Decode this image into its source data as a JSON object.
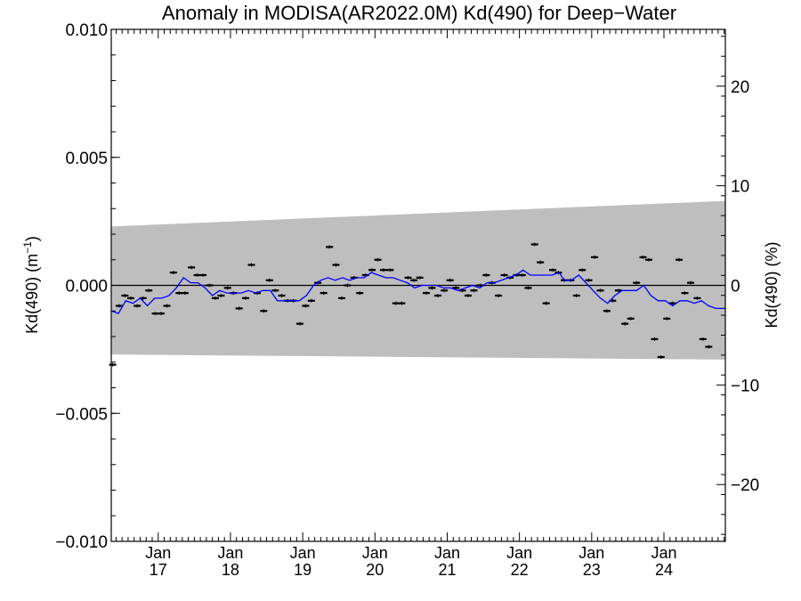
{
  "chart_data": {
    "type": "scatter",
    "title": "Anomaly in MODISA(AR2022.0M) Kd(490) for Deep−Water",
    "ylabel_left_prefix": "Kd(490) (m",
    "ylabel_left_sup": "−1",
    "ylabel_left_suffix": ")",
    "ylabel_right": "Kd(490) (%)",
    "ylim_left": [
      -0.01,
      0.01
    ],
    "ylim_right": [
      -25.7,
      25.7
    ],
    "xlim": [
      2016.35,
      2024.85
    ],
    "left_ticks": [
      {
        "v": 0.01,
        "label": "0.010"
      },
      {
        "v": 0.005,
        "label": "0.005"
      },
      {
        "v": 0.0,
        "label": "0.000"
      },
      {
        "v": -0.005,
        "label": "−0.005"
      },
      {
        "v": -0.01,
        "label": "−0.010"
      }
    ],
    "right_ticks": [
      {
        "v": 20,
        "label": "20"
      },
      {
        "v": 10,
        "label": "10"
      },
      {
        "v": 0,
        "label": "0"
      },
      {
        "v": -10,
        "label": "−10"
      },
      {
        "v": -20,
        "label": "−20"
      }
    ],
    "x_ticks": [
      {
        "x": 2017.0,
        "month": "Jan",
        "year": "17"
      },
      {
        "x": 2018.0,
        "month": "Jan",
        "year": "18"
      },
      {
        "x": 2019.0,
        "month": "Jan",
        "year": "19"
      },
      {
        "x": 2020.0,
        "month": "Jan",
        "year": "20"
      },
      {
        "x": 2021.0,
        "month": "Jan",
        "year": "21"
      },
      {
        "x": 2022.0,
        "month": "Jan",
        "year": "22"
      },
      {
        "x": 2023.0,
        "month": "Jan",
        "year": "23"
      },
      {
        "x": 2024.0,
        "month": "Jan",
        "year": "24"
      }
    ],
    "band": {
      "x": [
        2016.35,
        2024.85
      ],
      "upper": [
        0.0023,
        0.0033
      ],
      "lower": [
        -0.0027,
        -0.0029
      ],
      "color": "#bebebe"
    },
    "zero_line": 0.0,
    "colors": {
      "points": "#000000",
      "smooth": "#0000ff"
    },
    "points": [
      [
        2016.37,
        -0.0031
      ],
      [
        2016.46,
        -0.0008
      ],
      [
        2016.54,
        -0.0004
      ],
      [
        2016.62,
        -0.0005
      ],
      [
        2016.71,
        -0.0008
      ],
      [
        2016.79,
        -0.0005
      ],
      [
        2016.87,
        -0.0002
      ],
      [
        2016.96,
        -0.0011
      ],
      [
        2017.04,
        -0.0011
      ],
      [
        2017.12,
        -0.0008
      ],
      [
        2017.21,
        0.0005
      ],
      [
        2017.29,
        -0.0003
      ],
      [
        2017.37,
        -0.0003
      ],
      [
        2017.46,
        0.0007
      ],
      [
        2017.54,
        0.0004
      ],
      [
        2017.62,
        0.0004
      ],
      [
        2017.71,
        0.0
      ],
      [
        2017.79,
        -0.0005
      ],
      [
        2017.87,
        -0.0004
      ],
      [
        2017.96,
        -0.0001
      ],
      [
        2018.04,
        -0.0003
      ],
      [
        2018.12,
        -0.0009
      ],
      [
        2018.21,
        -0.0005
      ],
      [
        2018.29,
        0.0008
      ],
      [
        2018.37,
        -0.0003
      ],
      [
        2018.46,
        -0.001
      ],
      [
        2018.54,
        0.0002
      ],
      [
        2018.62,
        -0.0002
      ],
      [
        2018.71,
        -0.0004
      ],
      [
        2018.79,
        -0.0006
      ],
      [
        2018.87,
        -0.0006
      ],
      [
        2018.96,
        -0.0015
      ],
      [
        2019.04,
        -0.0008
      ],
      [
        2019.12,
        -0.0006
      ],
      [
        2019.21,
        0.0001
      ],
      [
        2019.29,
        -0.0003
      ],
      [
        2019.37,
        0.0015
      ],
      [
        2019.46,
        0.0008
      ],
      [
        2019.54,
        -0.0005
      ],
      [
        2019.62,
        0.0
      ],
      [
        2019.71,
        0.0003
      ],
      [
        2019.79,
        -0.0003
      ],
      [
        2019.87,
        0.0004
      ],
      [
        2019.96,
        0.0006
      ],
      [
        2020.04,
        0.001
      ],
      [
        2020.12,
        0.0006
      ],
      [
        2020.21,
        0.0006
      ],
      [
        2020.29,
        -0.0007
      ],
      [
        2020.37,
        -0.0007
      ],
      [
        2020.46,
        0.0003
      ],
      [
        2020.54,
        0.0002
      ],
      [
        2020.62,
        0.0003
      ],
      [
        2020.71,
        -0.0003
      ],
      [
        2020.79,
        -0.0001
      ],
      [
        2020.87,
        -0.0004
      ],
      [
        2020.96,
        -0.0002
      ],
      [
        2021.04,
        0.0002
      ],
      [
        2021.12,
        -0.0001
      ],
      [
        2021.21,
        -0.0002
      ],
      [
        2021.29,
        -0.0004
      ],
      [
        2021.37,
        -0.0002
      ],
      [
        2021.46,
        0.0
      ],
      [
        2021.54,
        0.0004
      ],
      [
        2021.62,
        0.0001
      ],
      [
        2021.71,
        -0.0004
      ],
      [
        2021.79,
        0.0004
      ],
      [
        2021.87,
        0.0003
      ],
      [
        2021.96,
        0.0004
      ],
      [
        2022.04,
        0.0004
      ],
      [
        2022.12,
        -0.0001
      ],
      [
        2022.21,
        0.0016
      ],
      [
        2022.29,
        0.0009
      ],
      [
        2022.37,
        -0.0007
      ],
      [
        2022.46,
        0.0006
      ],
      [
        2022.54,
        0.0005
      ],
      [
        2022.62,
        0.0002
      ],
      [
        2022.71,
        0.0002
      ],
      [
        2022.79,
        -0.0004
      ],
      [
        2022.87,
        0.0006
      ],
      [
        2022.96,
        0.0002
      ],
      [
        2023.04,
        0.0011
      ],
      [
        2023.12,
        -0.0002
      ],
      [
        2023.21,
        -0.001
      ],
      [
        2023.29,
        -0.0006
      ],
      [
        2023.37,
        -0.0002
      ],
      [
        2023.46,
        -0.0015
      ],
      [
        2023.54,
        -0.0013
      ],
      [
        2023.62,
        0.0001
      ],
      [
        2023.71,
        0.0011
      ],
      [
        2023.79,
        0.001
      ],
      [
        2023.87,
        -0.0021
      ],
      [
        2023.96,
        -0.0028
      ],
      [
        2024.04,
        -0.0013
      ],
      [
        2024.12,
        -0.0007
      ],
      [
        2024.21,
        0.001
      ],
      [
        2024.29,
        -0.0003
      ],
      [
        2024.37,
        0.0001
      ],
      [
        2024.46,
        -0.0005
      ],
      [
        2024.54,
        -0.0021
      ],
      [
        2024.62,
        -0.0024
      ]
    ],
    "smooth": [
      [
        2016.35,
        -0.001
      ],
      [
        2016.45,
        -0.0011
      ],
      [
        2016.55,
        -0.0006
      ],
      [
        2016.65,
        -0.0007
      ],
      [
        2016.75,
        -0.0005
      ],
      [
        2016.85,
        -0.0008
      ],
      [
        2016.95,
        -0.0005
      ],
      [
        2017.05,
        -0.0005
      ],
      [
        2017.15,
        -0.0004
      ],
      [
        2017.25,
        -0.0001
      ],
      [
        2017.35,
        0.0003
      ],
      [
        2017.45,
        0.0001
      ],
      [
        2017.55,
        0.0001
      ],
      [
        2017.65,
        -0.0001
      ],
      [
        2017.75,
        -0.0004
      ],
      [
        2017.85,
        -0.0002
      ],
      [
        2017.95,
        -0.0003
      ],
      [
        2018.05,
        -0.0003
      ],
      [
        2018.15,
        -0.0003
      ],
      [
        2018.25,
        -0.0002
      ],
      [
        2018.35,
        -0.0003
      ],
      [
        2018.45,
        -0.0002
      ],
      [
        2018.55,
        -0.0002
      ],
      [
        2018.65,
        -0.0006
      ],
      [
        2018.75,
        -0.0006
      ],
      [
        2018.85,
        -0.0006
      ],
      [
        2018.95,
        -0.0006
      ],
      [
        2019.05,
        -0.0004
      ],
      [
        2019.15,
        0.0
      ],
      [
        2019.25,
        0.0002
      ],
      [
        2019.35,
        0.0003
      ],
      [
        2019.45,
        0.0002
      ],
      [
        2019.55,
        0.0003
      ],
      [
        2019.65,
        0.0002
      ],
      [
        2019.75,
        0.0003
      ],
      [
        2019.85,
        0.0003
      ],
      [
        2019.95,
        0.0005
      ],
      [
        2020.05,
        0.0004
      ],
      [
        2020.15,
        0.0003
      ],
      [
        2020.25,
        0.0003
      ],
      [
        2020.35,
        0.0002
      ],
      [
        2020.45,
        0.0001
      ],
      [
        2020.55,
        -0.0001
      ],
      [
        2020.65,
        0.0
      ],
      [
        2020.75,
        0.0
      ],
      [
        2020.85,
        0.0
      ],
      [
        2020.95,
        -0.0001
      ],
      [
        2021.05,
        -0.0001
      ],
      [
        2021.15,
        -0.0002
      ],
      [
        2021.25,
        -0.0001
      ],
      [
        2021.35,
        0.0
      ],
      [
        2021.45,
        -0.0001
      ],
      [
        2021.55,
        0.0001
      ],
      [
        2021.65,
        0.0001
      ],
      [
        2021.75,
        0.0002
      ],
      [
        2021.85,
        0.0003
      ],
      [
        2021.95,
        0.0004
      ],
      [
        2022.05,
        0.0006
      ],
      [
        2022.15,
        0.0004
      ],
      [
        2022.25,
        0.0004
      ],
      [
        2022.35,
        0.0004
      ],
      [
        2022.45,
        0.0004
      ],
      [
        2022.55,
        0.0005
      ],
      [
        2022.62,
        0.0002
      ],
      [
        2022.72,
        0.0002
      ],
      [
        2022.82,
        0.0004
      ],
      [
        2022.92,
        0.0001
      ],
      [
        2023.02,
        -0.0002
      ],
      [
        2023.12,
        -0.0005
      ],
      [
        2023.22,
        -0.0007
      ],
      [
        2023.32,
        -0.0004
      ],
      [
        2023.42,
        -0.0002
      ],
      [
        2023.52,
        -0.0002
      ],
      [
        2023.62,
        -0.0002
      ],
      [
        2023.72,
        0.0
      ],
      [
        2023.82,
        -0.0004
      ],
      [
        2023.92,
        -0.0006
      ],
      [
        2024.02,
        -0.0006
      ],
      [
        2024.12,
        -0.0008
      ],
      [
        2024.22,
        -0.0006
      ],
      [
        2024.32,
        -0.0006
      ],
      [
        2024.42,
        -0.0007
      ],
      [
        2024.52,
        -0.0006
      ],
      [
        2024.62,
        -0.0008
      ],
      [
        2024.72,
        -0.0009
      ],
      [
        2024.85,
        -0.0009
      ]
    ]
  }
}
